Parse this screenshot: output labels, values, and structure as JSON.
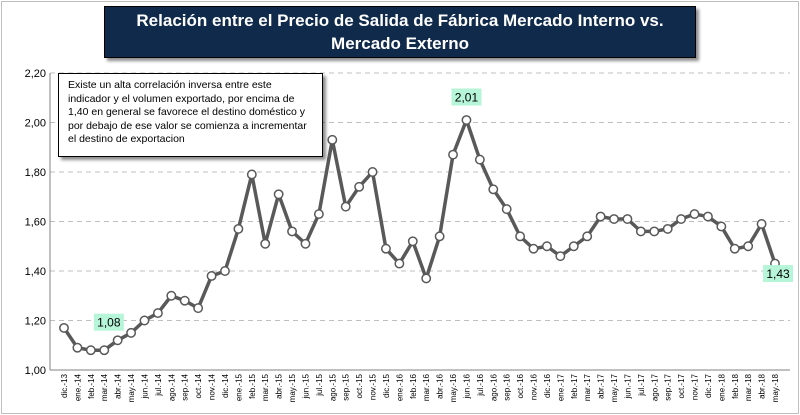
{
  "title": "Relación  entre el Precio de Salida de Fábrica Mercado Interno vs. Mercado Externo",
  "annotation": "Existe un alta correlación inversa entre este indicador y el volumen exportado, por encima de 1,40 en general se favorece el destino doméstico y por debajo de ese valor se comienza a incrementar el destino de exportacion",
  "colors": {
    "title_bg": "#0f2a4a",
    "line": "#595959",
    "marker_fill": "#ffffff",
    "label_bg": "#b6f5d8",
    "grid": "#bfbfbf"
  },
  "chart_data": {
    "type": "line",
    "title": "Relación  entre el Precio de Salida de Fábrica Mercado Interno vs. Mercado Externo",
    "xlabel": "",
    "ylabel": "",
    "ylim": [
      1.0,
      2.2
    ],
    "yticks": [
      "1,00",
      "1,20",
      "1,40",
      "1,60",
      "1,80",
      "2,00",
      "2,20"
    ],
    "grid": true,
    "categories": [
      "dic.-13",
      "ene.-14",
      "feb.-14",
      "mar.-14",
      "abr.-14",
      "may.-14",
      "jun.-14",
      "jul.-14",
      "ago.-14",
      "sep.-14",
      "oct.-14",
      "nov.-14",
      "dic.-14",
      "ene.-15",
      "feb.-15",
      "mar.-15",
      "abr.-15",
      "may.-15",
      "jun.-15",
      "jul.-15",
      "ago.-15",
      "sep.-15",
      "oct.-15",
      "nov.-15",
      "dic.-15",
      "ene.-16",
      "feb.-16",
      "mar.-16",
      "abr.-16",
      "may.-16",
      "jun.-16",
      "jul.-16",
      "ago.-16",
      "sep.-16",
      "oct.-16",
      "nov.-16",
      "dic.-16",
      "ene.-17",
      "feb.-17",
      "mar.-17",
      "abr.-17",
      "may.-17",
      "jun.-17",
      "jul.-17",
      "ago.-17",
      "sep.-17",
      "oct.-17",
      "nov.-17",
      "dic.-17",
      "ene.-18",
      "feb.-18",
      "mar.-18",
      "abr.-18",
      "may.-18"
    ],
    "xtick_labels": [
      "dic.-13",
      "ene.-14",
      "feb.-14",
      "mar.-14",
      "abr.-14",
      "may.-14",
      "jun.-14",
      "jul.-14",
      "ago.-14",
      "sep.-14",
      "oct.-14",
      "nov.-14",
      "dic.-14",
      "ene.-15",
      "feb.-15",
      "mar.-15",
      "abr.-15",
      "may.-15",
      "jun.-15",
      "jul.-15",
      "ago.-15",
      "sep.-15",
      "oct.-15",
      "nov.-15",
      "dic.-15",
      "ene.-16",
      "feb.-16",
      "mar.-16",
      "abr.-16",
      "may.-16",
      "jun.-16",
      "jul.-16",
      "ago.-16",
      "sep.-16",
      "oct.-16",
      "nov.-16",
      "dic.-16",
      "ene.-17",
      "feb.-17",
      "mar.-17",
      "abr.-17",
      "may.-17",
      "jun.-17",
      "jul.-17",
      "ago.-17",
      "sep.-17",
      "oct.-17",
      "nov.-17",
      "dic.-17",
      "ene.-18",
      "feb.-18",
      "mar.-18",
      "abr.-18",
      "may.-18"
    ],
    "values": [
      1.17,
      1.09,
      1.08,
      1.08,
      1.12,
      1.15,
      1.2,
      1.23,
      1.3,
      1.28,
      1.25,
      1.38,
      1.4,
      1.57,
      1.79,
      1.51,
      1.71,
      1.56,
      1.51,
      1.63,
      1.93,
      1.66,
      1.74,
      1.8,
      1.49,
      1.43,
      1.52,
      1.37,
      1.54,
      1.87,
      2.01,
      1.85,
      1.73,
      1.65,
      1.54,
      1.49,
      1.5,
      1.46,
      1.5,
      1.54,
      1.62,
      1.61,
      1.61,
      1.56,
      1.56,
      1.57,
      1.61,
      1.63,
      1.62,
      1.58,
      1.49,
      1.5,
      1.59,
      1.43
    ],
    "data_labels": [
      {
        "index": 2,
        "text": "1,08"
      },
      {
        "index": 30,
        "text": "2,01"
      },
      {
        "index": 53,
        "text": "1,43"
      }
    ]
  }
}
